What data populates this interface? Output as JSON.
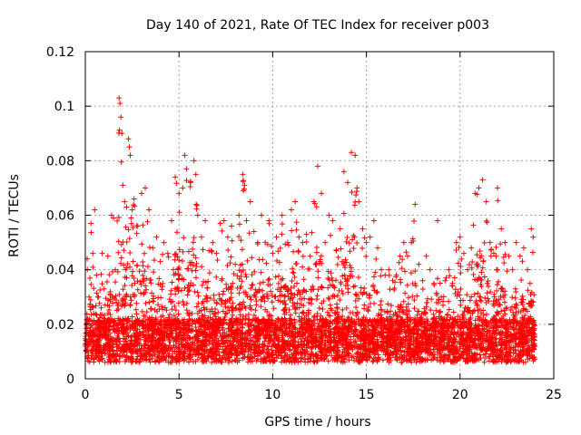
{
  "chart_data": {
    "type": "scatter",
    "title": "Day 140 of 2021, Rate Of TEC Index for receiver p003",
    "xlabel": "GPS time / hours",
    "ylabel": "ROTI / TECUs",
    "xlim": [
      0,
      25
    ],
    "ylim": [
      0,
      0.12
    ],
    "x_ticks": [
      0,
      5,
      10,
      15,
      20,
      25
    ],
    "x_tick_labels": [
      "0",
      "5",
      "10",
      "15",
      "20",
      "25"
    ],
    "y_ticks": [
      0,
      0.02,
      0.04,
      0.06,
      0.08,
      0.1,
      0.12
    ],
    "y_tick_labels": [
      "0",
      "0.02",
      "0.04",
      "0.06",
      "0.08",
      "0.1",
      "0.12"
    ],
    "grid": true,
    "marker": "+",
    "color": "#ff0000",
    "series": [
      {
        "points": [
          [
            0.0,
            0.012
          ],
          [
            0.1,
            0.044
          ],
          [
            0.2,
            0.03
          ],
          [
            0.3,
            0.057
          ],
          [
            0.4,
            0.046
          ],
          [
            0.5,
            0.062
          ],
          [
            0.6,
            0.038
          ],
          [
            0.7,
            0.03
          ],
          [
            0.9,
            0.046
          ],
          [
            1.0,
            0.033
          ],
          [
            1.2,
            0.045
          ],
          [
            1.4,
            0.06
          ],
          [
            1.5,
            0.059
          ],
          [
            1.6,
            0.04
          ],
          [
            1.8,
            0.103
          ],
          [
            1.85,
            0.101
          ],
          [
            1.9,
            0.096
          ],
          [
            1.95,
            0.09
          ],
          [
            2.0,
            0.071
          ],
          [
            2.1,
            0.065
          ],
          [
            2.2,
            0.063
          ],
          [
            2.3,
            0.088
          ],
          [
            2.35,
            0.085
          ],
          [
            2.4,
            0.082
          ],
          [
            2.5,
            0.062
          ],
          [
            2.6,
            0.066
          ],
          [
            2.8,
            0.056
          ],
          [
            3.0,
            0.068
          ],
          [
            3.2,
            0.07
          ],
          [
            3.4,
            0.062
          ],
          [
            3.6,
            0.048
          ],
          [
            3.8,
            0.052
          ],
          [
            4.0,
            0.043
          ],
          [
            4.2,
            0.05
          ],
          [
            4.4,
            0.046
          ],
          [
            4.6,
            0.058
          ],
          [
            4.8,
            0.074
          ],
          [
            5.0,
            0.068
          ],
          [
            5.2,
            0.07
          ],
          [
            5.3,
            0.082
          ],
          [
            5.4,
            0.077
          ],
          [
            5.6,
            0.072
          ],
          [
            5.8,
            0.08
          ],
          [
            5.9,
            0.075
          ],
          [
            6.0,
            0.06
          ],
          [
            6.2,
            0.052
          ],
          [
            6.4,
            0.058
          ],
          [
            6.6,
            0.047
          ],
          [
            6.8,
            0.05
          ],
          [
            7.0,
            0.046
          ],
          [
            7.2,
            0.057
          ],
          [
            7.4,
            0.058
          ],
          [
            7.6,
            0.052
          ],
          [
            7.8,
            0.056
          ],
          [
            8.0,
            0.042
          ],
          [
            8.2,
            0.06
          ],
          [
            8.4,
            0.075
          ],
          [
            8.5,
            0.071
          ],
          [
            8.6,
            0.058
          ],
          [
            8.8,
            0.065
          ],
          [
            9.0,
            0.054
          ],
          [
            9.2,
            0.05
          ],
          [
            9.4,
            0.06
          ],
          [
            9.6,
            0.05
          ],
          [
            9.8,
            0.058
          ],
          [
            10.0,
            0.046
          ],
          [
            10.2,
            0.052
          ],
          [
            10.5,
            0.06
          ],
          [
            10.8,
            0.05
          ],
          [
            11.0,
            0.062
          ],
          [
            11.2,
            0.065
          ],
          [
            11.4,
            0.052
          ],
          [
            11.6,
            0.05
          ],
          [
            11.8,
            0.053
          ],
          [
            12.0,
            0.045
          ],
          [
            12.2,
            0.065
          ],
          [
            12.4,
            0.078
          ],
          [
            12.6,
            0.068
          ],
          [
            12.8,
            0.05
          ],
          [
            13.0,
            0.06
          ],
          [
            13.2,
            0.058
          ],
          [
            13.4,
            0.047
          ],
          [
            13.6,
            0.055
          ],
          [
            13.8,
            0.076
          ],
          [
            14.0,
            0.072
          ],
          [
            14.2,
            0.083
          ],
          [
            14.4,
            0.082
          ],
          [
            14.5,
            0.07
          ],
          [
            14.6,
            0.065
          ],
          [
            14.8,
            0.055
          ],
          [
            15.0,
            0.05
          ],
          [
            15.2,
            0.052
          ],
          [
            15.4,
            0.058
          ],
          [
            15.6,
            0.048
          ],
          [
            15.8,
            0.04
          ],
          [
            16.0,
            0.038
          ],
          [
            16.2,
            0.04
          ],
          [
            16.4,
            0.036
          ],
          [
            16.6,
            0.038
          ],
          [
            16.8,
            0.045
          ],
          [
            17.0,
            0.05
          ],
          [
            17.2,
            0.045
          ],
          [
            17.4,
            0.05
          ],
          [
            17.6,
            0.064
          ],
          [
            17.8,
            0.042
          ],
          [
            18.0,
            0.036
          ],
          [
            18.2,
            0.045
          ],
          [
            18.4,
            0.04
          ],
          [
            18.6,
            0.035
          ],
          [
            18.8,
            0.058
          ],
          [
            19.0,
            0.03
          ],
          [
            19.2,
            0.036
          ],
          [
            19.4,
            0.04
          ],
          [
            19.6,
            0.035
          ],
          [
            19.8,
            0.05
          ],
          [
            20.0,
            0.052
          ],
          [
            20.2,
            0.046
          ],
          [
            20.4,
            0.04
          ],
          [
            20.6,
            0.048
          ],
          [
            20.8,
            0.068
          ],
          [
            21.0,
            0.07
          ],
          [
            21.2,
            0.073
          ],
          [
            21.4,
            0.065
          ],
          [
            21.6,
            0.05
          ],
          [
            21.8,
            0.046
          ],
          [
            22.0,
            0.07
          ],
          [
            22.2,
            0.055
          ],
          [
            22.4,
            0.05
          ],
          [
            22.6,
            0.045
          ],
          [
            22.8,
            0.04
          ],
          [
            23.0,
            0.05
          ],
          [
            23.2,
            0.045
          ],
          [
            23.4,
            0.048
          ],
          [
            23.6,
            0.04
          ],
          [
            23.8,
            0.055
          ],
          [
            23.9,
            0.052
          ],
          [
            24.0,
            0.012
          ]
        ]
      }
    ]
  }
}
